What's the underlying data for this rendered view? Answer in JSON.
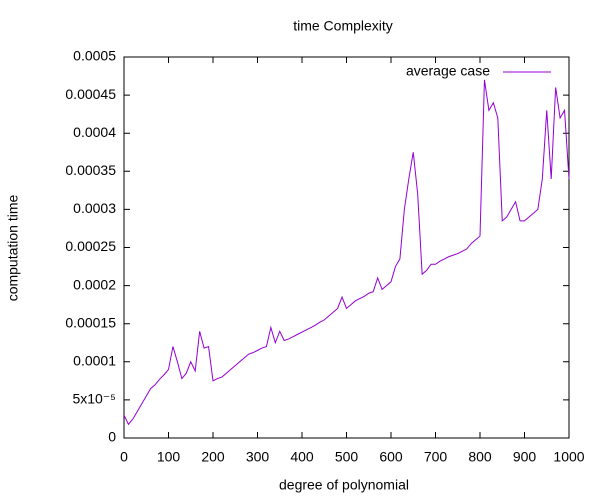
{
  "chart_data": {
    "type": "line",
    "title": "time Complexity",
    "x_label": "degree of polynomial",
    "y_label": "computation time",
    "x": [
      0,
      10,
      20,
      30,
      40,
      50,
      60,
      70,
      80,
      90,
      100,
      110,
      120,
      130,
      140,
      150,
      160,
      170,
      180,
      190,
      200,
      210,
      220,
      230,
      240,
      250,
      260,
      270,
      280,
      290,
      300,
      310,
      320,
      330,
      340,
      350,
      360,
      370,
      380,
      390,
      400,
      410,
      420,
      430,
      440,
      450,
      460,
      470,
      480,
      490,
      500,
      510,
      520,
      530,
      540,
      550,
      560,
      570,
      580,
      590,
      600,
      610,
      620,
      630,
      640,
      650,
      660,
      670,
      680,
      690,
      700,
      710,
      720,
      730,
      740,
      750,
      760,
      770,
      780,
      790,
      800,
      810,
      820,
      830,
      840,
      850,
      860,
      870,
      880,
      890,
      900,
      910,
      920,
      930,
      940,
      950,
      960,
      970,
      980,
      990,
      1000
    ],
    "series": [
      {
        "name": "average case",
        "color": "#9400d3",
        "values": [
          3e-05,
          1.8e-05,
          2.5e-05,
          3.5e-05,
          4.5e-05,
          5.5e-05,
          6.5e-05,
          7e-05,
          7.7e-05,
          8.3e-05,
          9e-05,
          0.00012,
          0.0001,
          7.8e-05,
          8.5e-05,
          0.0001,
          8.8e-05,
          0.00014,
          0.000118,
          0.00012,
          7.5e-05,
          7.8e-05,
          8e-05,
          8.5e-05,
          9e-05,
          9.5e-05,
          0.0001,
          0.000105,
          0.00011,
          0.000112,
          0.000115,
          0.000118,
          0.00012,
          0.000145,
          0.000125,
          0.00014,
          0.000128,
          0.00013,
          0.000133,
          0.000136,
          0.000139,
          0.000142,
          0.000145,
          0.000148,
          0.000152,
          0.000155,
          0.00016,
          0.000165,
          0.00017,
          0.000185,
          0.00017,
          0.000175,
          0.00018,
          0.000183,
          0.000186,
          0.00019,
          0.000192,
          0.00021,
          0.000195,
          0.0002,
          0.000205,
          0.000225,
          0.000235,
          0.0003,
          0.00034,
          0.000375,
          0.00032,
          0.000215,
          0.00022,
          0.000228,
          0.000228,
          0.000232,
          0.000235,
          0.000238,
          0.00024,
          0.000242,
          0.000245,
          0.000248,
          0.000255,
          0.00026,
          0.000265,
          0.00047,
          0.00043,
          0.00044,
          0.00042,
          0.000285,
          0.00029,
          0.0003,
          0.00031,
          0.000285,
          0.000285,
          0.00029,
          0.000295,
          0.0003,
          0.00034,
          0.00043,
          0.00034,
          0.00046,
          0.00042,
          0.00043,
          0.00034
        ]
      }
    ],
    "xlim": [
      0,
      1000
    ],
    "xticks": [
      0,
      100,
      200,
      300,
      400,
      500,
      600,
      700,
      800,
      900,
      1000
    ],
    "ylim": [
      0,
      0.0005
    ],
    "yticks": [
      0,
      {
        "value": 5e-05,
        "label": "5x10⁻⁵"
      },
      0.0001,
      0.00015,
      0.0002,
      0.00025,
      0.0003,
      0.00035,
      0.0004,
      0.00045,
      0.0005
    ],
    "legend": "top-right"
  }
}
